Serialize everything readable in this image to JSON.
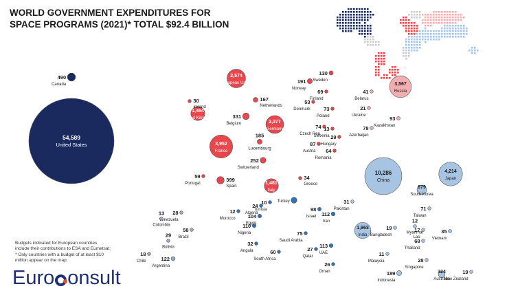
{
  "title_line1": "WORLD GOVERNMENT EXPENDITURES FOR",
  "title_line2": "SPACE PROGRAMS (2021)* TOTAL $92.4 BILLION",
  "note_line1": "Budgets indicated for European countries",
  "note_line2": "include their contributions to ESA and Eumetsat;",
  "note_line3": "* Only countries with a budget of at least  $10",
  "note_line4": "million appear on the map.",
  "logo_left": "Euro",
  "logo_right": "onsult",
  "colors": {
    "americas": "#1a2a5e",
    "europe": "#e8474d",
    "russia_cis": "#f2aeb0",
    "asia_pacific": "#a7c4e2",
    "mideast_africa": "#2f74b8",
    "latam_small": "#9ea7c4",
    "stroke": "#555555",
    "map_dark": "#1a2a5e",
    "map_red": "#e8474d",
    "map_pink": "#f2aeb0",
    "map_blue": "#a7c4e2",
    "map_gray": "#cccccc"
  },
  "chart_data": {
    "type": "bubble",
    "title": "WORLD GOVERNMENT EXPENDITURES FOR SPACE PROGRAMS (2021)* TOTAL $92.4 BILLION",
    "unit": "USD million",
    "total": "$92.4 BILLION",
    "series": [
      {
        "country": "United States",
        "value": 54589,
        "region": "americas"
      },
      {
        "country": "Canada",
        "value": 490,
        "region": "americas"
      },
      {
        "country": "Brazil",
        "value": 58,
        "region": "latam_small"
      },
      {
        "country": "Argentina",
        "value": 122,
        "region": "latam_small"
      },
      {
        "country": "Venezuela",
        "value": 28,
        "region": "latam_small"
      },
      {
        "country": "Colombia",
        "value": 13,
        "region": "latam_small"
      },
      {
        "country": "Bolivia",
        "value": 29,
        "region": "latam_small"
      },
      {
        "country": "Chile",
        "value": 18,
        "region": "latam_small"
      },
      {
        "country": "European Union",
        "value": 2574,
        "region": "europe"
      },
      {
        "country": "France",
        "value": 3952,
        "region": "europe"
      },
      {
        "country": "Germany",
        "value": 2377,
        "region": "europe"
      },
      {
        "country": "Italy",
        "value": 1481,
        "region": "europe"
      },
      {
        "country": "United Kingdom",
        "value": 1464,
        "region": "europe"
      },
      {
        "country": "Spain",
        "value": 399,
        "region": "europe"
      },
      {
        "country": "Belgium",
        "value": 331,
        "region": "europe"
      },
      {
        "country": "Switzerland",
        "value": 252,
        "region": "europe"
      },
      {
        "country": "Norway",
        "value": 191,
        "region": "europe"
      },
      {
        "country": "Luxembourg",
        "value": 185,
        "region": "europe"
      },
      {
        "country": "Netherlands",
        "value": 167,
        "region": "europe"
      },
      {
        "country": "Sweden",
        "value": 130,
        "region": "europe"
      },
      {
        "country": "Austria",
        "value": 87,
        "region": "europe"
      },
      {
        "country": "Czech Rep.",
        "value": 74,
        "region": "europe"
      },
      {
        "country": "Poland",
        "value": 73,
        "region": "europe"
      },
      {
        "country": "Finland",
        "value": 69,
        "region": "europe"
      },
      {
        "country": "Romania",
        "value": 64,
        "region": "europe"
      },
      {
        "country": "Portugal",
        "value": 59,
        "region": "europe"
      },
      {
        "country": "Denmark",
        "value": 53,
        "region": "europe"
      },
      {
        "country": "Greece",
        "value": 34,
        "region": "europe"
      },
      {
        "country": "Ireland",
        "value": 30,
        "region": "europe"
      },
      {
        "country": "Hungary",
        "value": 29,
        "region": "europe"
      },
      {
        "country": "Slovenia",
        "value": 13,
        "region": "europe"
      },
      {
        "country": "Russia",
        "value": 3567,
        "region": "russia_cis"
      },
      {
        "country": "Kazakhstan",
        "value": 93,
        "region": "russia_cis"
      },
      {
        "country": "Azerbaijan",
        "value": 78,
        "region": "russia_cis"
      },
      {
        "country": "Belarus",
        "value": 41,
        "region": "russia_cis"
      },
      {
        "country": "Ukraine",
        "value": 21,
        "region": "russia_cis"
      },
      {
        "country": "China",
        "value": 10286,
        "region": "asia_pacific"
      },
      {
        "country": "Japan",
        "value": 4214,
        "region": "asia_pacific"
      },
      {
        "country": "India",
        "value": 1963,
        "region": "asia_pacific"
      },
      {
        "country": "South Korea",
        "value": 679,
        "region": "asia_pacific"
      },
      {
        "country": "Australia",
        "value": 324,
        "region": "asia_pacific"
      },
      {
        "country": "Indonesia",
        "value": 189,
        "region": "asia_pacific"
      },
      {
        "country": "Taiwan",
        "value": 71,
        "region": "asia_pacific"
      },
      {
        "country": "Thailand",
        "value": 68,
        "region": "asia_pacific"
      },
      {
        "country": "Vietnam",
        "value": 35,
        "region": "asia_pacific"
      },
      {
        "country": "Pakistan",
        "value": 31,
        "region": "asia_pacific"
      },
      {
        "country": "Singapore",
        "value": 28,
        "region": "asia_pacific"
      },
      {
        "country": "Bangladesh",
        "value": 19,
        "region": "asia_pacific"
      },
      {
        "country": "New Zealand",
        "value": 19,
        "region": "asia_pacific"
      },
      {
        "country": "Lao",
        "value": 17,
        "region": "asia_pacific"
      },
      {
        "country": "Myanmar",
        "value": 12,
        "region": "asia_pacific"
      },
      {
        "country": "Malaysia",
        "value": 11,
        "region": "asia_pacific"
      },
      {
        "country": "Turkey",
        "value": 259,
        "region": "mideast_africa",
        "value_label": ""
      },
      {
        "country": "Iran",
        "value": 112,
        "region": "mideast_africa"
      },
      {
        "country": "UAE",
        "value": 113,
        "region": "mideast_africa"
      },
      {
        "country": "Nigeria",
        "value": 110,
        "region": "mideast_africa"
      },
      {
        "country": "Egypt",
        "value": 104,
        "region": "mideast_africa"
      },
      {
        "country": "Israel",
        "value": 98,
        "region": "mideast_africa"
      },
      {
        "country": "Saudi Arabia",
        "value": 75,
        "region": "mideast_africa"
      },
      {
        "country": "South Africa",
        "value": 60,
        "region": "mideast_africa"
      },
      {
        "country": "Angola",
        "value": 32,
        "region": "mideast_africa"
      },
      {
        "country": "Qatar",
        "value": 27,
        "region": "mideast_africa"
      },
      {
        "country": "Oman",
        "value": 26,
        "region": "mideast_africa"
      },
      {
        "country": "Algeria",
        "value": 24,
        "region": "mideast_africa"
      },
      {
        "country": "Morocco",
        "value": 12,
        "region": "mideast_africa"
      },
      {
        "country": "Tunisia",
        "value": 10,
        "region": "mideast_africa"
      }
    ]
  }
}
